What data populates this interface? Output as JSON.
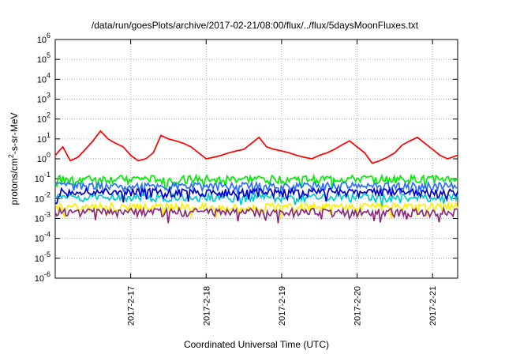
{
  "chart_data": {
    "type": "line",
    "title": "/data/run/goesPlots/archive/2017-02-21/08:00/flux/../flux/5daysMoonFluxes.txt",
    "xlabel": "Coordinated Universal Time (UTC)",
    "ylabel": "protons/cm2-s-sr-MeV",
    "yscale": "log",
    "ylim": [
      1e-06,
      1000000.0
    ],
    "y_ticks": [
      {
        "mant": "10",
        "exp": "-6"
      },
      {
        "mant": "10",
        "exp": "-5"
      },
      {
        "mant": "10",
        "exp": "-4"
      },
      {
        "mant": "10",
        "exp": "-3"
      },
      {
        "mant": "10",
        "exp": "-2"
      },
      {
        "mant": "10",
        "exp": "-1"
      },
      {
        "mant": "10",
        "exp": "0"
      },
      {
        "mant": "10",
        "exp": "1"
      },
      {
        "mant": "10",
        "exp": "2"
      },
      {
        "mant": "10",
        "exp": "3"
      },
      {
        "mant": "10",
        "exp": "4"
      },
      {
        "mant": "10",
        "exp": "5"
      },
      {
        "mant": "10",
        "exp": "6"
      }
    ],
    "x_range_days": [
      2017.0216,
      2017.0221
    ],
    "xlim": [
      "2017-02-16T00:00",
      "2017-02-21T08:00"
    ],
    "x_ticks": [
      "2017-2-17",
      "2017-2-18",
      "2017-2-19",
      "2017-2-20",
      "2017-2-21"
    ],
    "grid": true,
    "series": [
      {
        "color": "#ff0000",
        "x": [
          0.0,
          0.1,
          0.2,
          0.3,
          0.4,
          0.5,
          0.6,
          0.7,
          0.8,
          0.9,
          1.0,
          1.1,
          1.2,
          1.3,
          1.4,
          1.5,
          1.6,
          1.7,
          1.8,
          1.9,
          2.0,
          2.1,
          2.2,
          2.3,
          2.4,
          2.5,
          2.6,
          2.7,
          2.8,
          2.9,
          3.0,
          3.1,
          3.2,
          3.3,
          3.4,
          3.5,
          3.6,
          3.7,
          3.8,
          3.9,
          4.0,
          4.1,
          4.2,
          4.3,
          4.4,
          4.5,
          4.6,
          4.7,
          4.8,
          4.9,
          5.0,
          5.1,
          5.2,
          5.33
        ],
        "y": [
          1.5,
          4,
          0.8,
          1.2,
          3,
          8,
          25,
          10,
          6,
          4,
          1.5,
          0.8,
          1,
          2,
          15,
          10,
          8,
          6,
          4,
          2,
          1,
          1.2,
          1.5,
          2,
          2.5,
          3,
          6,
          12,
          4,
          3,
          2.5,
          2,
          1.5,
          1.2,
          1,
          1.5,
          2,
          3,
          5,
          8,
          4,
          2,
          0.6,
          0.8,
          1.2,
          2,
          5,
          8,
          12,
          6,
          3,
          1.5,
          1,
          1.5
        ]
      },
      {
        "color": "#00ee00",
        "x": [
          0,
          5.33
        ],
        "y": [
          0.1,
          0.1
        ]
      },
      {
        "color": "#2a6fff",
        "x": [
          0,
          5.33
        ],
        "y": [
          0.045,
          0.045
        ]
      },
      {
        "color": "#00cccc",
        "x": [
          0,
          5.33
        ],
        "y": [
          0.012,
          0.012
        ]
      },
      {
        "color": "#0000cc",
        "x": [
          0,
          5.33
        ],
        "y": [
          0.022,
          0.022
        ]
      },
      {
        "color": "#ffee00",
        "x": [
          0,
          5.33
        ],
        "y": [
          0.004,
          0.004
        ]
      },
      {
        "color": "#8b2a7b",
        "x": [
          0,
          5.33
        ],
        "y": [
          0.0022,
          0.0022
        ]
      }
    ]
  }
}
